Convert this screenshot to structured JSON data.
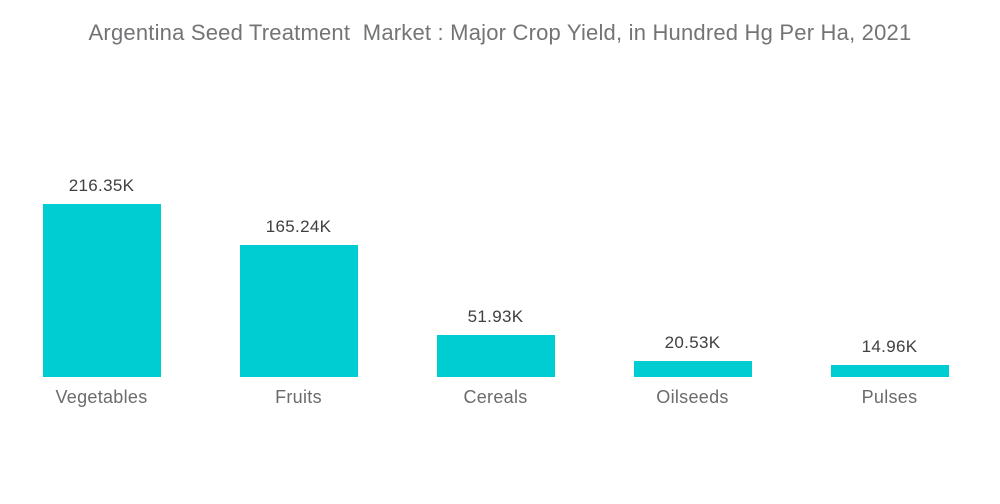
{
  "title": "Argentina Seed Treatment  Market : Major Crop Yield, in Hundred Hg Per Ha, 2021",
  "chart_data": {
    "type": "bar",
    "title": "Argentina Seed Treatment  Market : Major Crop Yield, in Hundred Hg Per Ha, 2021",
    "categories": [
      "Vegetables",
      "Fruits",
      "Cereals",
      "Oilseeds",
      "Pulses"
    ],
    "values": [
      216350,
      165240,
      51930,
      20530,
      14960
    ],
    "value_labels": [
      "216.35K",
      "165.24K",
      "51.93K",
      "20.53K",
      "14.96K"
    ],
    "xlabel": "",
    "ylabel": "",
    "ylim": [
      0,
      216350
    ],
    "grid": false,
    "legend": false,
    "data_labels_position": "above-bar",
    "category_labels_position": "below-bar"
  },
  "colors": {
    "background": "#FFFFFF",
    "bar": "#00CDD1",
    "title_text": "#737476",
    "value_label_text": "#3F4042",
    "category_label_text": "#6A6B6D"
  }
}
